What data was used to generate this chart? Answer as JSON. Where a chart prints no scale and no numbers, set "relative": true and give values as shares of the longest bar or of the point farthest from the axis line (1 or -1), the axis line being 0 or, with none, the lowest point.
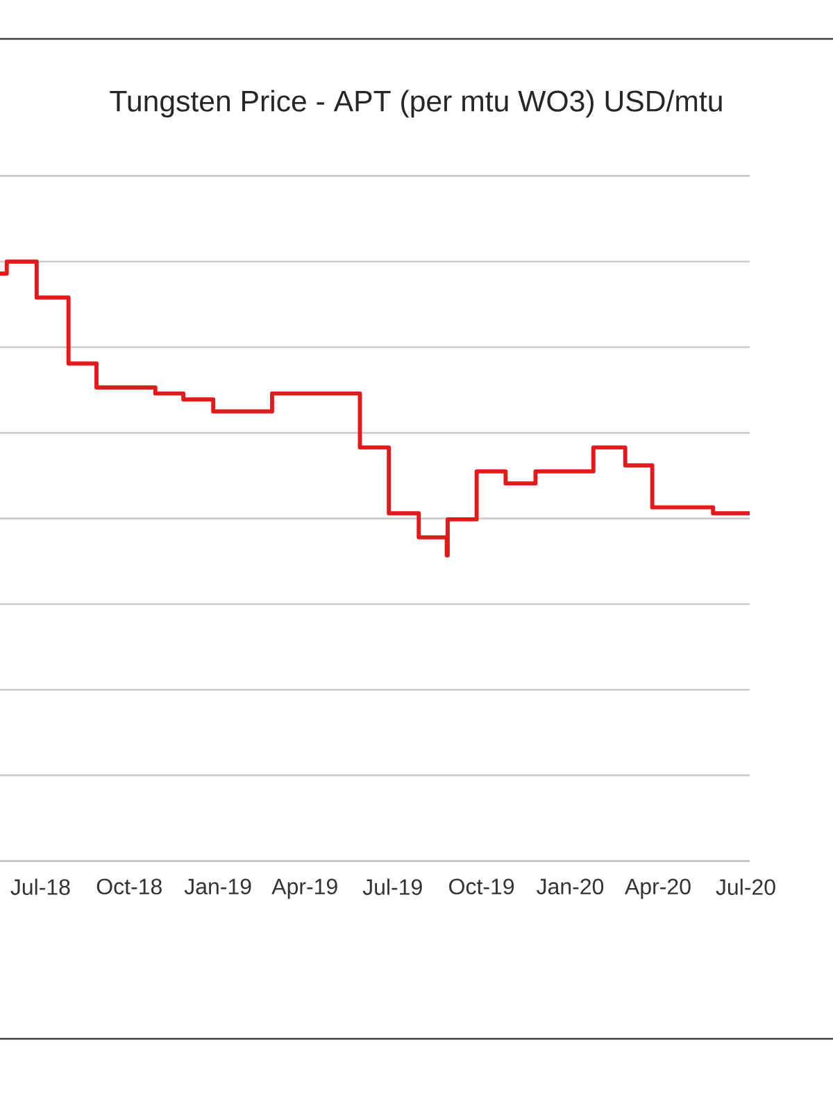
{
  "chart_data": {
    "type": "step",
    "title": "Tungsten Price - APT (per mtu WO3) USD/mtu",
    "relative": true,
    "grid": "y",
    "marker": "none",
    "line_style": "solid",
    "x": [
      "2018-05-20",
      "2018-05-27",
      "2018-06-27",
      "2018-07-30",
      "2018-08-28",
      "2018-10-28",
      "2018-11-26",
      "2018-12-27",
      "2019-01-26",
      "2019-02-26",
      "2019-03-30",
      "2019-05-28",
      "2019-06-27",
      "2019-07-28",
      "2019-08-26",
      "2019-08-27",
      "2019-09-26",
      "2019-10-26",
      "2019-11-26",
      "2020-01-25",
      "2020-02-27",
      "2020-03-26",
      "2020-05-28",
      "2020-07-05"
    ],
    "series": [
      {
        "color": "#e31a1c",
        "values": [
          0.98,
          1.0,
          0.94,
          0.83,
          0.79,
          0.78,
          0.77,
          0.75,
          0.75,
          0.78,
          0.78,
          0.69,
          0.58,
          0.54,
          0.51,
          0.57,
          0.65,
          0.63,
          0.65,
          0.69,
          0.66,
          0.59,
          0.58,
          0.58
        ]
      }
    ],
    "xlim": [
      "2018-05-20",
      "2020-07-05"
    ],
    "xticks": [
      {
        "value": "2018-07-01",
        "label": "Jul-18"
      },
      {
        "value": "2018-10-01",
        "label": "Oct-18"
      },
      {
        "value": "2019-01-01",
        "label": "Jan-19"
      },
      {
        "value": "2019-04-01",
        "label": "Apr-19"
      },
      {
        "value": "2019-07-01",
        "label": "Jul-19"
      },
      {
        "value": "2019-10-01",
        "label": "Oct-19"
      },
      {
        "value": "2020-01-01",
        "label": "Jan-20"
      },
      {
        "value": "2020-04-01",
        "label": "Apr-20"
      },
      {
        "value": "2020-07-01",
        "label": "Jul-20"
      }
    ]
  }
}
